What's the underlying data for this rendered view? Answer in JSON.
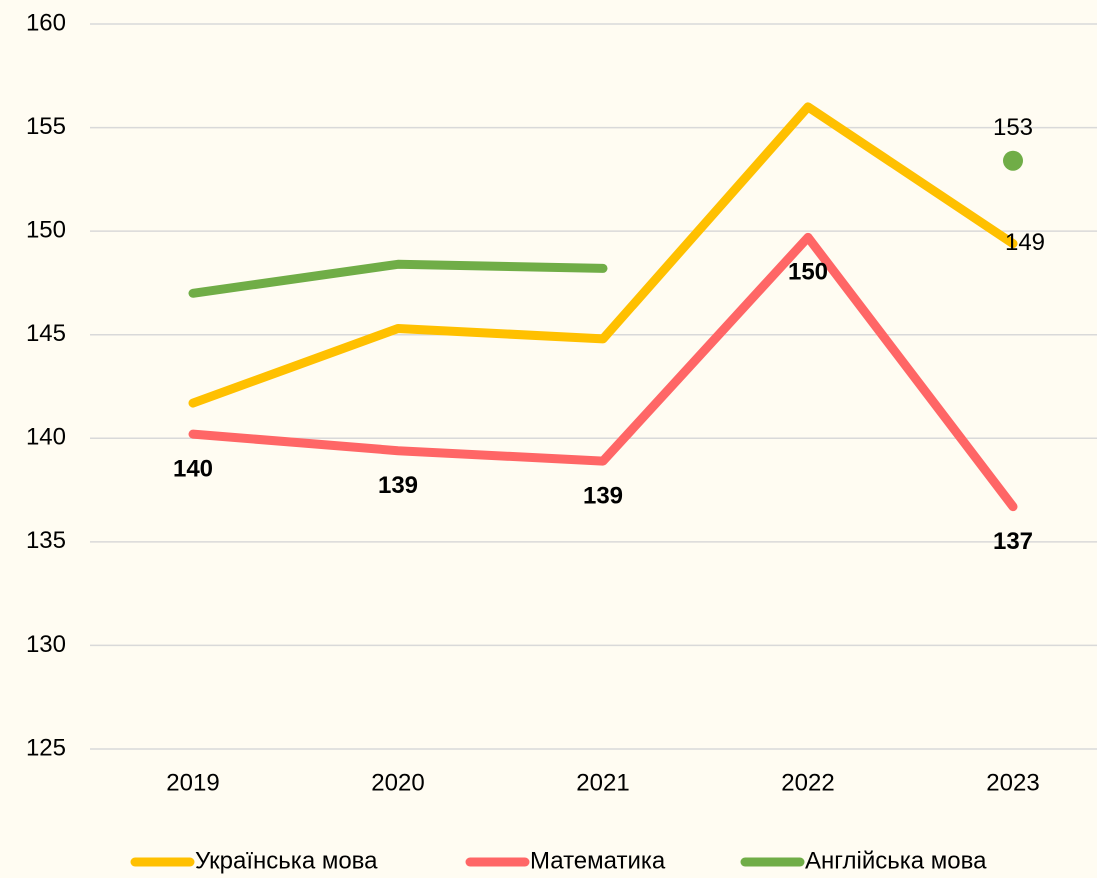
{
  "chart_data": {
    "type": "line",
    "categories": [
      "2019",
      "2020",
      "2021",
      "2022",
      "2023"
    ],
    "series": [
      {
        "name": "Українська мова",
        "color": "#ffc000",
        "values": [
          141.7,
          145.3,
          144.8,
          156.0,
          149.4
        ],
        "value_labels": [
          null,
          null,
          null,
          null,
          "149"
        ]
      },
      {
        "name": "Математика",
        "color": "#ff6666",
        "values": [
          140.2,
          139.4,
          138.9,
          149.7,
          136.7
        ],
        "value_labels": [
          "140",
          "139",
          "139",
          "150",
          "137"
        ]
      },
      {
        "name": "Англійська мова",
        "color": "#70ad47",
        "values": [
          147.0,
          148.4,
          148.2,
          null,
          153.4
        ],
        "value_labels": [
          null,
          null,
          null,
          null,
          "153"
        ]
      }
    ],
    "ylim": [
      125,
      160
    ],
    "yticks": [
      125,
      130,
      135,
      140,
      145,
      150,
      155,
      160
    ],
    "grid": true,
    "legend": "bottom"
  }
}
